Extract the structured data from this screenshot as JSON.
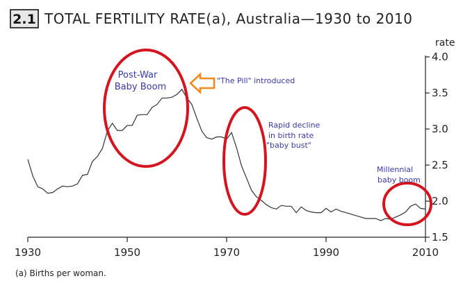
{
  "figure": {
    "badge": "2.1",
    "title": "TOTAL FERTILITY RATE(a), Australia—1930 to 2010",
    "footnote": "(a) Births per woman."
  },
  "chart_data": {
    "type": "line",
    "title": "TOTAL FERTILITY RATE(a), Australia—1930 to 2010",
    "xlabel": "",
    "ylabel": "rate",
    "xlim": [
      1930,
      2010
    ],
    "ylim": [
      1.5,
      4.0
    ],
    "x_ticks": [
      1930,
      1950,
      1970,
      1990,
      2010
    ],
    "y_ticks": [
      1.5,
      2.0,
      2.5,
      3.0,
      3.5,
      4.0
    ],
    "y_tick_labels": [
      "1.5",
      "2.0",
      "2.5",
      "3.0",
      "3.5",
      "4.0"
    ],
    "grid": false,
    "y_axis_position": "right",
    "series": [
      {
        "color": "#333333",
        "points": [
          [
            1930,
            2.58
          ],
          [
            1931,
            2.35
          ],
          [
            1932,
            2.2
          ],
          [
            1933,
            2.17
          ],
          [
            1934,
            2.11
          ],
          [
            1935,
            2.12
          ],
          [
            1936,
            2.17
          ],
          [
            1937,
            2.21
          ],
          [
            1938,
            2.2
          ],
          [
            1939,
            2.21
          ],
          [
            1940,
            2.24
          ],
          [
            1941,
            2.36
          ],
          [
            1942,
            2.37
          ],
          [
            1943,
            2.55
          ],
          [
            1944,
            2.62
          ],
          [
            1945,
            2.73
          ],
          [
            1946,
            2.97
          ],
          [
            1947,
            3.08
          ],
          [
            1948,
            2.98
          ],
          [
            1949,
            2.98
          ],
          [
            1950,
            3.05
          ],
          [
            1951,
            3.05
          ],
          [
            1952,
            3.19
          ],
          [
            1953,
            3.2
          ],
          [
            1954,
            3.2
          ],
          [
            1955,
            3.3
          ],
          [
            1956,
            3.34
          ],
          [
            1957,
            3.43
          ],
          [
            1958,
            3.43
          ],
          [
            1959,
            3.44
          ],
          [
            1960,
            3.48
          ],
          [
            1961,
            3.55
          ],
          [
            1962,
            3.43
          ],
          [
            1963,
            3.34
          ],
          [
            1964,
            3.15
          ],
          [
            1965,
            2.97
          ],
          [
            1966,
            2.88
          ],
          [
            1967,
            2.86
          ],
          [
            1968,
            2.89
          ],
          [
            1969,
            2.89
          ],
          [
            1970,
            2.86
          ],
          [
            1971,
            2.95
          ],
          [
            1972,
            2.74
          ],
          [
            1973,
            2.49
          ],
          [
            1974,
            2.32
          ],
          [
            1975,
            2.15
          ],
          [
            1976,
            2.06
          ],
          [
            1977,
            2.01
          ],
          [
            1978,
            1.95
          ],
          [
            1979,
            1.91
          ],
          [
            1980,
            1.89
          ],
          [
            1981,
            1.94
          ],
          [
            1982,
            1.93
          ],
          [
            1983,
            1.93
          ],
          [
            1984,
            1.84
          ],
          [
            1985,
            1.92
          ],
          [
            1986,
            1.87
          ],
          [
            1987,
            1.85
          ],
          [
            1988,
            1.84
          ],
          [
            1989,
            1.84
          ],
          [
            1990,
            1.9
          ],
          [
            1991,
            1.85
          ],
          [
            1992,
            1.89
          ],
          [
            1993,
            1.86
          ],
          [
            1994,
            1.84
          ],
          [
            1995,
            1.82
          ],
          [
            1996,
            1.8
          ],
          [
            1997,
            1.78
          ],
          [
            1998,
            1.76
          ],
          [
            1999,
            1.76
          ],
          [
            2000,
            1.76
          ],
          [
            2001,
            1.73
          ],
          [
            2002,
            1.76
          ],
          [
            2003,
            1.75
          ],
          [
            2004,
            1.78
          ],
          [
            2005,
            1.81
          ],
          [
            2006,
            1.85
          ],
          [
            2007,
            1.93
          ],
          [
            2008,
            1.96
          ],
          [
            2009,
            1.9
          ],
          [
            2010,
            1.89
          ]
        ]
      }
    ],
    "annotations": [
      {
        "id": "postwar",
        "lines": [
          "Post-War",
          "Baby Boom"
        ]
      },
      {
        "id": "pill",
        "lines": [
          "\"The Pill\" introduced"
        ]
      },
      {
        "id": "decline",
        "lines": [
          "Rapid decline",
          "in birth rate",
          "\"baby bust\""
        ]
      },
      {
        "id": "millennial",
        "lines": [
          "Millennial",
          "baby boom"
        ]
      }
    ],
    "highlight_color": "#d4141e",
    "arrow_color": "#f08a1c",
    "annotation_color": "#3a3aa8"
  }
}
